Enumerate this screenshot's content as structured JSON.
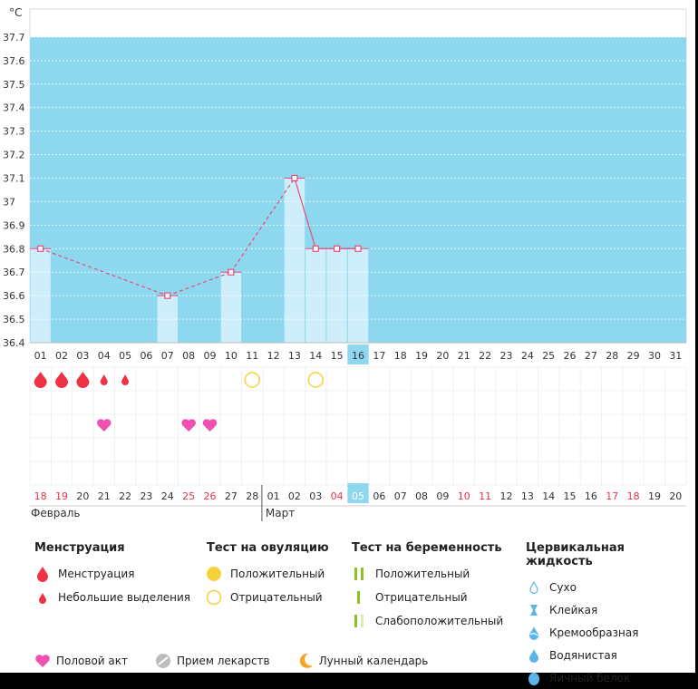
{
  "chart_data": {
    "type": "line",
    "unit_label": "°C",
    "ylim": [
      36.4,
      37.8
    ],
    "y_ticks": [
      "37.7",
      "37.6",
      "37.5",
      "37.4",
      "37.3",
      "37.2",
      "37.1",
      "37",
      "36.9",
      "36.8",
      "36.7",
      "36.6",
      "36.5",
      "36.4"
    ],
    "cycle_days": [
      "01",
      "02",
      "03",
      "04",
      "05",
      "06",
      "07",
      "08",
      "09",
      "10",
      "11",
      "12",
      "13",
      "14",
      "15",
      "16",
      "17",
      "18",
      "19",
      "20",
      "21",
      "22",
      "23",
      "24",
      "25",
      "26",
      "27",
      "28",
      "29",
      "30",
      "31"
    ],
    "current_day": "16",
    "dates": [
      "18",
      "19",
      "20",
      "21",
      "22",
      "23",
      "24",
      "25",
      "26",
      "27",
      "28",
      "01",
      "02",
      "03",
      "04",
      "05",
      "06",
      "07",
      "08",
      "09",
      "10",
      "11",
      "12",
      "13",
      "14",
      "15",
      "16",
      "17",
      "18",
      "19",
      "20"
    ],
    "red_dates_index": [
      0,
      1,
      7,
      8,
      14,
      20,
      21,
      27,
      28
    ],
    "current_date_index": 15,
    "months": [
      {
        "label": "Февраль",
        "start_index": 0
      },
      {
        "label": "Март",
        "start_index": 11
      }
    ],
    "series": [
      {
        "points": [
          {
            "day": "01",
            "value": 36.8
          },
          {
            "day": "07",
            "value": 36.6
          },
          {
            "day": "10",
            "value": 36.7
          },
          {
            "day": "13",
            "value": 37.1
          },
          {
            "day": "14",
            "value": 36.8
          },
          {
            "day": "15",
            "value": 36.8
          },
          {
            "day": "16",
            "value": 36.8
          }
        ]
      }
    ],
    "bars_days": [
      "01",
      "07",
      "10",
      "13",
      "14",
      "15",
      "16"
    ],
    "solid_segments": [
      [
        "13",
        "14"
      ],
      [
        "14",
        "15"
      ],
      [
        "15",
        "16"
      ]
    ],
    "menstruation": [
      {
        "day": "01",
        "type": "menstruation"
      },
      {
        "day": "02",
        "type": "menstruation"
      },
      {
        "day": "03",
        "type": "menstruation"
      },
      {
        "day": "04",
        "type": "spotting"
      },
      {
        "day": "05",
        "type": "spotting"
      }
    ],
    "ovulation_tests": [
      {
        "day": "11",
        "result": "negative"
      },
      {
        "day": "14",
        "result": "negative"
      }
    ],
    "intercourse_days": [
      "04",
      "08",
      "09"
    ],
    "colors": {
      "background": "#8ed8ef",
      "bar": "#cdeefa",
      "line": "#e84b7a",
      "menstruation": "#ee3344",
      "heart": "#f050b0",
      "ovulation": "#f5d23c",
      "highlight": "#8ed8ef"
    }
  },
  "legend": {
    "menstruation": {
      "title": "Менструация",
      "items": [
        {
          "label": "Менструация",
          "icon": "drop-large-icon"
        },
        {
          "label": "Небольшие выделения",
          "icon": "drop-small-icon"
        }
      ]
    },
    "ovulation": {
      "title": "Тест на овуляцию",
      "items": [
        {
          "label": "Положительный",
          "icon": "circle-filled-icon"
        },
        {
          "label": "Отрицательный",
          "icon": "circle-outline-icon"
        }
      ]
    },
    "pregnancy": {
      "title": "Тест на беременность",
      "items": [
        {
          "label": "Положительный",
          "icon": "two-lines-icon"
        },
        {
          "label": "Отрицательный",
          "icon": "one-line-icon"
        },
        {
          "label": "Слабоположительный",
          "icon": "faint-line-icon"
        }
      ]
    },
    "cervical": {
      "title": "Цервикальная жидкость",
      "items": [
        {
          "label": "Сухо",
          "icon": "dry-icon"
        },
        {
          "label": "Клейкая",
          "icon": "sticky-icon"
        },
        {
          "label": "Кремообразная",
          "icon": "creamy-icon"
        },
        {
          "label": "Водянистая",
          "icon": "watery-icon"
        },
        {
          "label": "Яичный белок",
          "icon": "egg-white-icon"
        }
      ]
    },
    "bottom": [
      {
        "label": "Половой акт",
        "icon": "heart-icon"
      },
      {
        "label": "Прием лекарств",
        "icon": "pill-icon"
      },
      {
        "label": "Лунный календарь",
        "icon": "moon-icon"
      }
    ]
  }
}
